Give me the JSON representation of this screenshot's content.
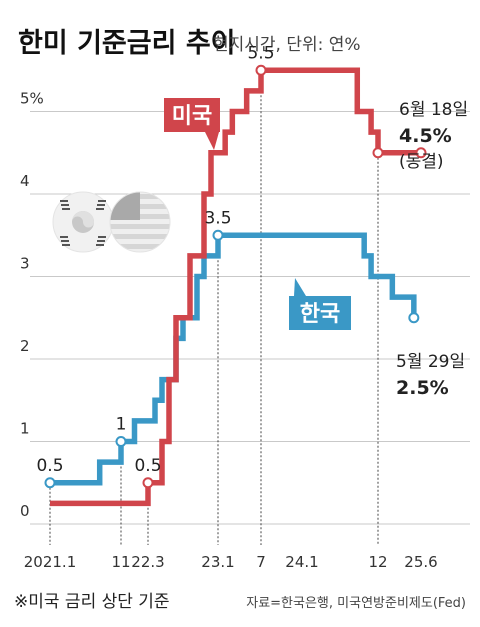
{
  "title": "한미 기준금리 추이",
  "subtitle": "현지시간, 단위: 연%",
  "footnote": "※미국 금리 상단 기준",
  "source": "자료=한국은행, 미국연방준비제도(Fed)",
  "colors": {
    "us": "#d0454b",
    "kr": "#3a98c6",
    "grid": "#c9c9c9"
  },
  "icons": [
    "korea-flag-icon",
    "us-flag-icon"
  ],
  "chart_data": {
    "type": "line",
    "step": true,
    "ylim": [
      0,
      6
    ],
    "yticks": [
      {
        "value": 0,
        "label": "0"
      },
      {
        "value": 1,
        "label": "1"
      },
      {
        "value": 2,
        "label": "2"
      },
      {
        "value": 3,
        "label": "3"
      },
      {
        "value": 4,
        "label": "4"
      },
      {
        "value": 5,
        "label": "5%"
      }
    ],
    "xticks": [
      {
        "date": "2021-01",
        "label": "2021.1"
      },
      {
        "date": "2021-11",
        "label": "11"
      },
      {
        "date": "2022-03",
        "label": "22.3"
      },
      {
        "date": "2023-01",
        "label": "23.1"
      },
      {
        "date": "2023-07",
        "label": "7"
      },
      {
        "date": "2024-01",
        "label": "24.1"
      },
      {
        "date": "2024-12",
        "label": "12"
      },
      {
        "date": "2025-06",
        "label": "25.6"
      }
    ],
    "series": [
      {
        "name": "미국",
        "color": "#d0454b",
        "points": [
          [
            "2021-01",
            0.25
          ],
          [
            "2022-03",
            0.5
          ],
          [
            "2022-05",
            1.0
          ],
          [
            "2022-06",
            1.75
          ],
          [
            "2022-07",
            2.5
          ],
          [
            "2022-09",
            3.25
          ],
          [
            "2022-11",
            4.0
          ],
          [
            "2022-12",
            4.5
          ],
          [
            "2023-02",
            4.75
          ],
          [
            "2023-03",
            5.0
          ],
          [
            "2023-05",
            5.25
          ],
          [
            "2023-07",
            5.5
          ],
          [
            "2024-09",
            5.0
          ],
          [
            "2024-11",
            4.75
          ],
          [
            "2024-12",
            4.5
          ],
          [
            "2025-06",
            4.5
          ]
        ]
      },
      {
        "name": "한국",
        "color": "#3a98c6",
        "points": [
          [
            "2021-01",
            0.5
          ],
          [
            "2021-08",
            0.75
          ],
          [
            "2021-11",
            1.0
          ],
          [
            "2022-01",
            1.25
          ],
          [
            "2022-04",
            1.5
          ],
          [
            "2022-05",
            1.75
          ],
          [
            "2022-07",
            2.25
          ],
          [
            "2022-08",
            2.5
          ],
          [
            "2022-10",
            3.0
          ],
          [
            "2022-11",
            3.25
          ],
          [
            "2023-01",
            3.5
          ],
          [
            "2024-10",
            3.25
          ],
          [
            "2024-11",
            3.0
          ],
          [
            "2025-02",
            2.75
          ],
          [
            "2025-05",
            2.5
          ]
        ]
      }
    ],
    "annotations": [
      {
        "text": "0.5",
        "series": "한국",
        "date": "2021-01",
        "value": 0.5
      },
      {
        "text": "1",
        "series": "한국",
        "date": "2021-11",
        "value": 1.0
      },
      {
        "text": "0.5",
        "series": "미국",
        "date": "2022-03",
        "value": 0.5
      },
      {
        "text": "3.5",
        "series": "한국",
        "date": "2023-01",
        "value": 3.5
      },
      {
        "text": "5.5",
        "series": "미국",
        "date": "2023-07",
        "value": 5.5
      }
    ],
    "end_labels": {
      "us": {
        "date_text": "6월 18일",
        "value_text": "4.5%",
        "note": "(동결)"
      },
      "kr": {
        "date_text": "5월 29일",
        "value_text": "2.5%"
      }
    }
  }
}
